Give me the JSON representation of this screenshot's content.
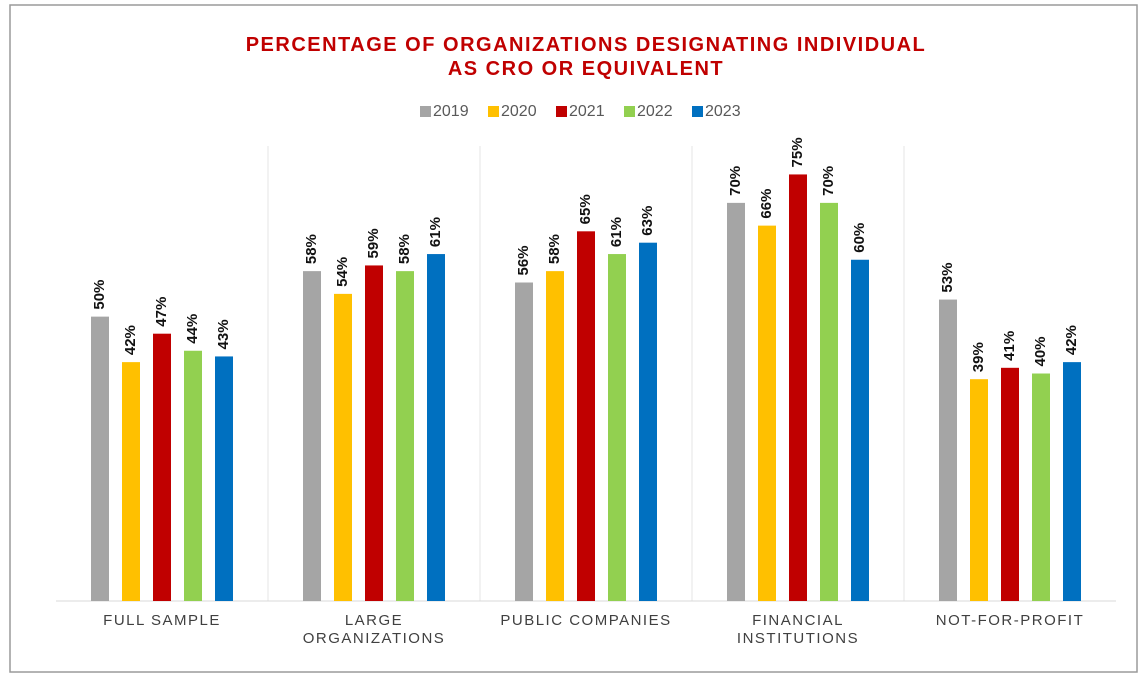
{
  "chart_data": {
    "type": "bar",
    "title": "PERCENTAGE OF ORGANIZATIONS DESIGNATING INDIVIDUAL\nAS CRO OR EQUIVALENT",
    "categories": [
      "FULL SAMPLE",
      "LARGE\nORGANIZATIONS",
      "PUBLIC COMPANIES",
      "FINANCIAL\nINSTITUTIONS",
      "NOT-FOR-PROFIT"
    ],
    "ylim": [
      0,
      80
    ],
    "legend": "top",
    "series": [
      {
        "name": "2019",
        "color": "#a5a5a5",
        "values": [
          50,
          58,
          56,
          70,
          53
        ],
        "value_labels": [
          "50%",
          "58%",
          "56%",
          "70%",
          "53%"
        ]
      },
      {
        "name": "2020",
        "color": "#ffc000",
        "values": [
          42,
          54,
          58,
          66,
          39
        ],
        "value_labels": [
          "42%",
          "54%",
          "58%",
          "66%",
          "39%"
        ]
      },
      {
        "name": "2021",
        "color": "#c00000",
        "values": [
          47,
          59,
          65,
          75,
          41
        ],
        "value_labels": [
          "47%",
          "59%",
          "65%",
          "75%",
          "41%"
        ]
      },
      {
        "name": "2022",
        "color": "#92d050",
        "values": [
          44,
          58,
          61,
          70,
          40
        ],
        "value_labels": [
          "44%",
          "58%",
          "61%",
          "70%",
          "40%"
        ]
      },
      {
        "name": "2023",
        "color": "#0070c0",
        "values": [
          43,
          61,
          63,
          60,
          42
        ],
        "value_labels": [
          "43%",
          "61%",
          "63%",
          "60%",
          "42%"
        ]
      }
    ]
  }
}
